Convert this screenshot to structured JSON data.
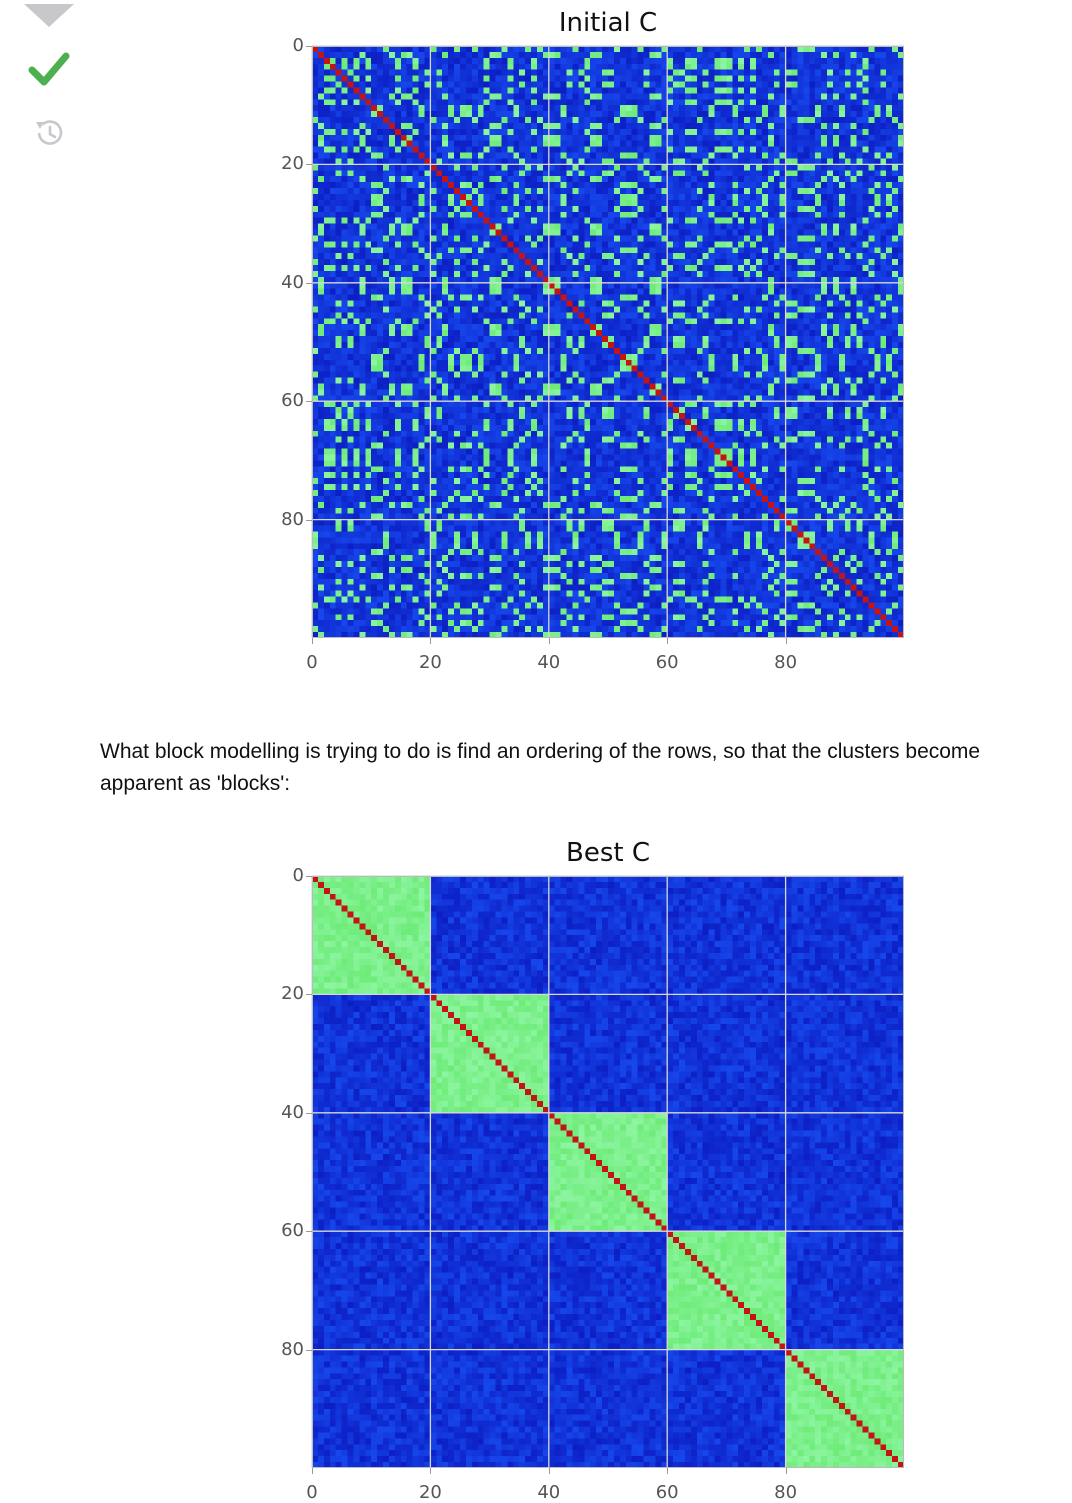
{
  "toolbar": {
    "icons": [
      "collapse-triangle-icon",
      "check-icon",
      "history-icon"
    ],
    "check_color": "#4caf50",
    "muted_color": "#c8c8cc"
  },
  "paragraph": "What block modelling is trying to do is find an ordering of the rows, so that the clusters become apparent as 'blocks':",
  "chart_data": [
    {
      "type": "heatmap",
      "title": "Initial C",
      "xlabel": "",
      "ylabel": "",
      "xlim": [
        0,
        100
      ],
      "ylim": [
        100,
        0
      ],
      "x_ticks": [
        "0",
        "20",
        "40",
        "60",
        "80"
      ],
      "y_ticks": [
        "0",
        "20",
        "40",
        "60",
        "80"
      ],
      "grid": true,
      "size": 100,
      "diagonal_value": 1.0,
      "cluster_value": 0.55,
      "background_value": 0.1,
      "note": "random ordering: green cluster entries scattered, red diagonal",
      "colors": {
        "low": "#0c1fd8",
        "mid": "#8cf5a0",
        "high": "#c41414"
      }
    },
    {
      "type": "heatmap",
      "title": "Best C",
      "xlabel": "",
      "ylabel": "",
      "xlim": [
        0,
        100
      ],
      "ylim": [
        100,
        0
      ],
      "x_ticks": [
        "0",
        "20",
        "40",
        "60",
        "80"
      ],
      "y_ticks": [
        "0",
        "20",
        "40",
        "60",
        "80"
      ],
      "grid": true,
      "size": 100,
      "blocks": [
        [
          0,
          20
        ],
        [
          20,
          40
        ],
        [
          40,
          60
        ],
        [
          60,
          80
        ],
        [
          80,
          100
        ]
      ],
      "diagonal_value": 1.0,
      "cluster_value": 0.55,
      "background_value": 0.1,
      "colors": {
        "low": "#0c1fd8",
        "mid": "#8cf5a0",
        "high": "#c41414"
      }
    }
  ]
}
